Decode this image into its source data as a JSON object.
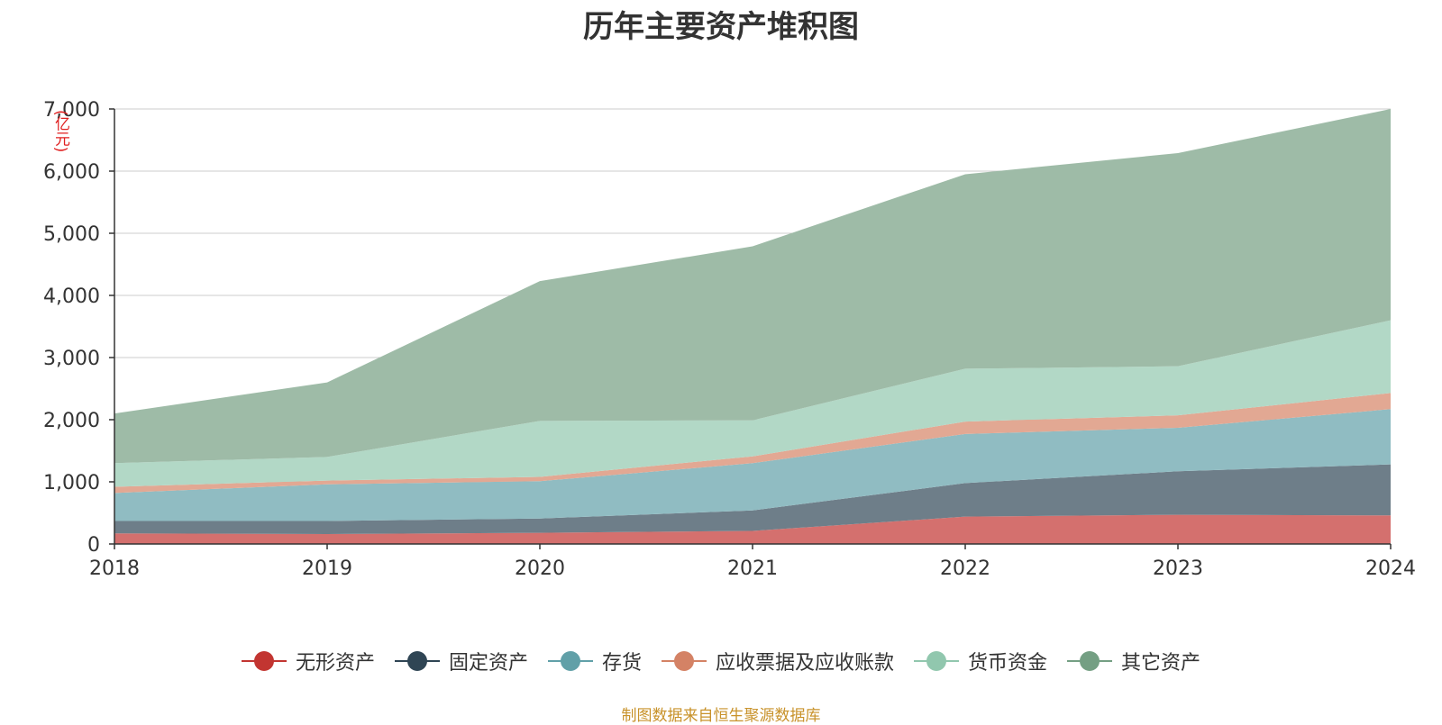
{
  "title": "历年主要资产堆积图",
  "unit_label": "(亿元)",
  "source": "制图数据来自恒生聚源数据库",
  "chart_data": {
    "type": "area",
    "stacked": true,
    "title": "历年主要资产堆积图",
    "x": [
      "2018",
      "2019",
      "2020",
      "2021",
      "2022",
      "2023",
      "2024"
    ],
    "ylim": [
      0,
      7000
    ],
    "yticks": [
      0,
      1000,
      2000,
      3000,
      4000,
      5000,
      6000,
      7000
    ],
    "ytick_labels": [
      "0",
      "1,000",
      "2,000",
      "3,000",
      "4,000",
      "5,000",
      "6,000",
      "7,000"
    ],
    "ylabel": "(亿元)",
    "grid": true,
    "legend_position": "bottom",
    "series": [
      {
        "name": "无形资产",
        "color": "#c23531",
        "fill": "#d4706e",
        "values": [
          170,
          160,
          180,
          210,
          440,
          470,
          460
        ]
      },
      {
        "name": "固定资产",
        "color": "#2f4554",
        "fill": "#6e7e89",
        "values": [
          200,
          210,
          230,
          330,
          540,
          700,
          820
        ]
      },
      {
        "name": "存货",
        "color": "#61a0a8",
        "fill": "#90bcc2",
        "values": [
          450,
          590,
          600,
          760,
          790,
          700,
          890
        ]
      },
      {
        "name": "应收票据及应收账款",
        "color": "#d48265",
        "fill": "#e2a893",
        "values": [
          100,
          60,
          70,
          110,
          200,
          200,
          260
        ]
      },
      {
        "name": "货币资金",
        "color": "#91c7ae",
        "fill": "#b2d8c6",
        "values": [
          380,
          380,
          900,
          580,
          850,
          790,
          1170
        ]
      },
      {
        "name": "其它资产",
        "color": "#749f83",
        "fill": "#9ebba7",
        "values": [
          800,
          1200,
          2250,
          2800,
          3130,
          3430,
          3400
        ]
      }
    ]
  }
}
